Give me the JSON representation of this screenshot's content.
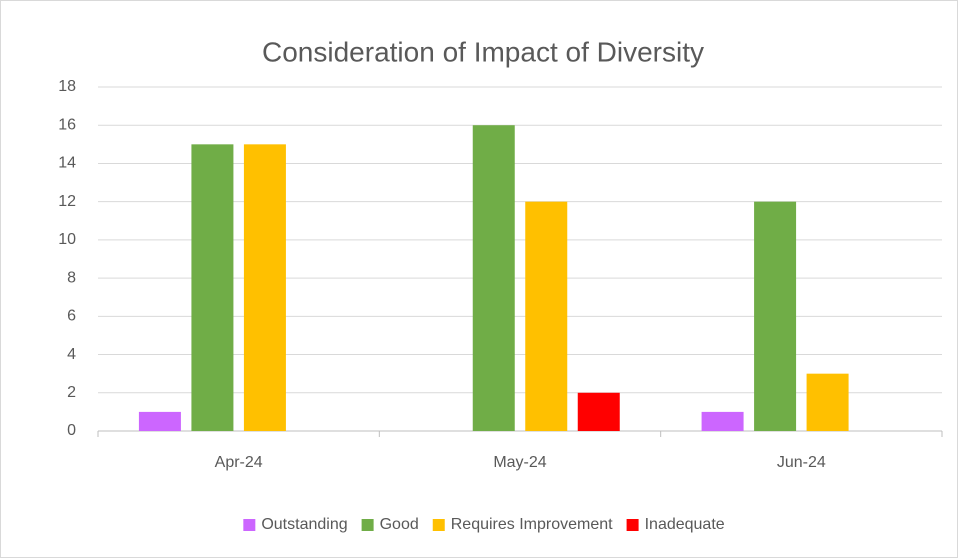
{
  "chart_data": {
    "type": "bar",
    "title": "Consideration of Impact of Diversity",
    "categories": [
      "Apr-24",
      "May-24",
      "Jun-24"
    ],
    "series": [
      {
        "name": "Outstanding",
        "color": "#cc66ff",
        "values": [
          1,
          0,
          1
        ]
      },
      {
        "name": "Good",
        "color": "#70ad47",
        "values": [
          15,
          16,
          12
        ]
      },
      {
        "name": "Requires Improvement",
        "color": "#ffc000",
        "values": [
          15,
          12,
          3
        ]
      },
      {
        "name": "Inadequate",
        "color": "#ff0000",
        "values": [
          0,
          2,
          0
        ]
      }
    ],
    "ylim": [
      0,
      18
    ],
    "yticks": [
      0,
      2,
      4,
      6,
      8,
      10,
      12,
      14,
      16,
      18
    ],
    "grid": true,
    "legend": "bottom"
  }
}
